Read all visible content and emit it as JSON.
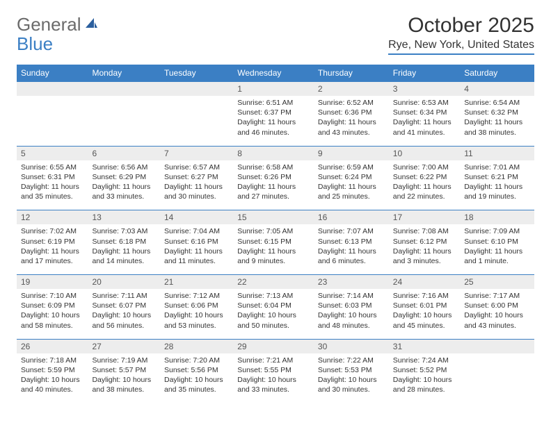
{
  "logo": {
    "text1": "General",
    "text2": "Blue"
  },
  "title": "October 2025",
  "location": "Rye, New York, United States",
  "colors": {
    "accent": "#3b7fc4",
    "header_bg": "#3b7fc4",
    "header_text": "#ffffff",
    "daynum_bg": "#ededed",
    "text": "#333333",
    "logo_gray": "#6b6b6b"
  },
  "day_headers": [
    "Sunday",
    "Monday",
    "Tuesday",
    "Wednesday",
    "Thursday",
    "Friday",
    "Saturday"
  ],
  "weeks": [
    [
      {
        "num": "",
        "detail": ""
      },
      {
        "num": "",
        "detail": ""
      },
      {
        "num": "",
        "detail": ""
      },
      {
        "num": "1",
        "detail": "Sunrise: 6:51 AM\nSunset: 6:37 PM\nDaylight: 11 hours and 46 minutes."
      },
      {
        "num": "2",
        "detail": "Sunrise: 6:52 AM\nSunset: 6:36 PM\nDaylight: 11 hours and 43 minutes."
      },
      {
        "num": "3",
        "detail": "Sunrise: 6:53 AM\nSunset: 6:34 PM\nDaylight: 11 hours and 41 minutes."
      },
      {
        "num": "4",
        "detail": "Sunrise: 6:54 AM\nSunset: 6:32 PM\nDaylight: 11 hours and 38 minutes."
      }
    ],
    [
      {
        "num": "5",
        "detail": "Sunrise: 6:55 AM\nSunset: 6:31 PM\nDaylight: 11 hours and 35 minutes."
      },
      {
        "num": "6",
        "detail": "Sunrise: 6:56 AM\nSunset: 6:29 PM\nDaylight: 11 hours and 33 minutes."
      },
      {
        "num": "7",
        "detail": "Sunrise: 6:57 AM\nSunset: 6:27 PM\nDaylight: 11 hours and 30 minutes."
      },
      {
        "num": "8",
        "detail": "Sunrise: 6:58 AM\nSunset: 6:26 PM\nDaylight: 11 hours and 27 minutes."
      },
      {
        "num": "9",
        "detail": "Sunrise: 6:59 AM\nSunset: 6:24 PM\nDaylight: 11 hours and 25 minutes."
      },
      {
        "num": "10",
        "detail": "Sunrise: 7:00 AM\nSunset: 6:22 PM\nDaylight: 11 hours and 22 minutes."
      },
      {
        "num": "11",
        "detail": "Sunrise: 7:01 AM\nSunset: 6:21 PM\nDaylight: 11 hours and 19 minutes."
      }
    ],
    [
      {
        "num": "12",
        "detail": "Sunrise: 7:02 AM\nSunset: 6:19 PM\nDaylight: 11 hours and 17 minutes."
      },
      {
        "num": "13",
        "detail": "Sunrise: 7:03 AM\nSunset: 6:18 PM\nDaylight: 11 hours and 14 minutes."
      },
      {
        "num": "14",
        "detail": "Sunrise: 7:04 AM\nSunset: 6:16 PM\nDaylight: 11 hours and 11 minutes."
      },
      {
        "num": "15",
        "detail": "Sunrise: 7:05 AM\nSunset: 6:15 PM\nDaylight: 11 hours and 9 minutes."
      },
      {
        "num": "16",
        "detail": "Sunrise: 7:07 AM\nSunset: 6:13 PM\nDaylight: 11 hours and 6 minutes."
      },
      {
        "num": "17",
        "detail": "Sunrise: 7:08 AM\nSunset: 6:12 PM\nDaylight: 11 hours and 3 minutes."
      },
      {
        "num": "18",
        "detail": "Sunrise: 7:09 AM\nSunset: 6:10 PM\nDaylight: 11 hours and 1 minute."
      }
    ],
    [
      {
        "num": "19",
        "detail": "Sunrise: 7:10 AM\nSunset: 6:09 PM\nDaylight: 10 hours and 58 minutes."
      },
      {
        "num": "20",
        "detail": "Sunrise: 7:11 AM\nSunset: 6:07 PM\nDaylight: 10 hours and 56 minutes."
      },
      {
        "num": "21",
        "detail": "Sunrise: 7:12 AM\nSunset: 6:06 PM\nDaylight: 10 hours and 53 minutes."
      },
      {
        "num": "22",
        "detail": "Sunrise: 7:13 AM\nSunset: 6:04 PM\nDaylight: 10 hours and 50 minutes."
      },
      {
        "num": "23",
        "detail": "Sunrise: 7:14 AM\nSunset: 6:03 PM\nDaylight: 10 hours and 48 minutes."
      },
      {
        "num": "24",
        "detail": "Sunrise: 7:16 AM\nSunset: 6:01 PM\nDaylight: 10 hours and 45 minutes."
      },
      {
        "num": "25",
        "detail": "Sunrise: 7:17 AM\nSunset: 6:00 PM\nDaylight: 10 hours and 43 minutes."
      }
    ],
    [
      {
        "num": "26",
        "detail": "Sunrise: 7:18 AM\nSunset: 5:59 PM\nDaylight: 10 hours and 40 minutes."
      },
      {
        "num": "27",
        "detail": "Sunrise: 7:19 AM\nSunset: 5:57 PM\nDaylight: 10 hours and 38 minutes."
      },
      {
        "num": "28",
        "detail": "Sunrise: 7:20 AM\nSunset: 5:56 PM\nDaylight: 10 hours and 35 minutes."
      },
      {
        "num": "29",
        "detail": "Sunrise: 7:21 AM\nSunset: 5:55 PM\nDaylight: 10 hours and 33 minutes."
      },
      {
        "num": "30",
        "detail": "Sunrise: 7:22 AM\nSunset: 5:53 PM\nDaylight: 10 hours and 30 minutes."
      },
      {
        "num": "31",
        "detail": "Sunrise: 7:24 AM\nSunset: 5:52 PM\nDaylight: 10 hours and 28 minutes."
      },
      {
        "num": "",
        "detail": ""
      }
    ]
  ]
}
